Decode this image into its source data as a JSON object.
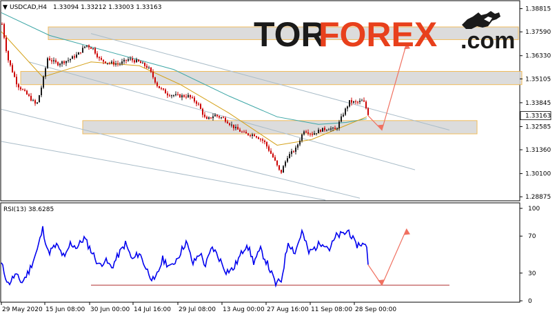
{
  "chart_data": [
    {
      "type": "candlestick",
      "title": "USDCAD,H4",
      "ohlc_text": "1.33094 1.33212 1.33003 1.33163",
      "current_price": "1.33163",
      "y_ticks": [
        "1.38815",
        "1.37590",
        "1.36330",
        "1.35105",
        "1.33845",
        "1.32585",
        "1.31360",
        "1.30100",
        "1.28875"
      ],
      "x_ticks": [
        "29 May 2020",
        "15 Jun 08:00",
        "30 Jun 00:00",
        "14 Jul 16:00",
        "29 Jul 08:00",
        "13 Aug 00:00",
        "27 Aug 16:00",
        "11 Sep 08:00",
        "28 Sep 00:00"
      ],
      "ylim": [
        1.287,
        1.392
      ],
      "colors": {
        "bull": "#1a1a1a",
        "bear": "#cc0000",
        "ma_fast": "#d4a017",
        "ma_slow": "#3aa5a5",
        "channel": "#a9bcc8",
        "zone_fill": "#d9d9d9",
        "zone_border": "#f0b54a",
        "arrow": "#f07060"
      },
      "price_path": [
        [
          0,
          1.38
        ],
        [
          8,
          1.362
        ],
        [
          22,
          1.348
        ],
        [
          38,
          1.342
        ],
        [
          50,
          1.337
        ],
        [
          58,
          1.348
        ],
        [
          66,
          1.362
        ],
        [
          80,
          1.359
        ],
        [
          96,
          1.361
        ],
        [
          110,
          1.364
        ],
        [
          122,
          1.369
        ],
        [
          132,
          1.367
        ],
        [
          142,
          1.361
        ],
        [
          156,
          1.3595
        ],
        [
          170,
          1.359
        ],
        [
          184,
          1.3615
        ],
        [
          198,
          1.36
        ],
        [
          212,
          1.357
        ],
        [
          226,
          1.347
        ],
        [
          240,
          1.343
        ],
        [
          256,
          1.342
        ],
        [
          270,
          1.342
        ],
        [
          284,
          1.338
        ],
        [
          296,
          1.329
        ],
        [
          308,
          1.332
        ],
        [
          322,
          1.33
        ],
        [
          338,
          1.325
        ],
        [
          352,
          1.322
        ],
        [
          366,
          1.3215
        ],
        [
          380,
          1.318
        ],
        [
          394,
          1.309
        ],
        [
          404,
          1.301
        ],
        [
          414,
          1.31
        ],
        [
          426,
          1.314
        ],
        [
          438,
          1.324
        ],
        [
          450,
          1.322
        ],
        [
          462,
          1.324
        ],
        [
          474,
          1.325
        ],
        [
          484,
          1.324
        ],
        [
          494,
          1.332
        ],
        [
          504,
          1.339
        ],
        [
          514,
          1.3385
        ],
        [
          524,
          1.3395
        ],
        [
          532,
          1.3316
        ]
      ],
      "ma_fast": [
        [
          0,
          1.376
        ],
        [
          60,
          1.352
        ],
        [
          130,
          1.36
        ],
        [
          200,
          1.358
        ],
        [
          260,
          1.348
        ],
        [
          330,
          1.333
        ],
        [
          400,
          1.316
        ],
        [
          450,
          1.319
        ],
        [
          490,
          1.325
        ],
        [
          530,
          1.331
        ]
      ],
      "ma_slow": [
        [
          0,
          1.386
        ],
        [
          70,
          1.374
        ],
        [
          150,
          1.366
        ],
        [
          250,
          1.356
        ],
        [
          330,
          1.342
        ],
        [
          400,
          1.331
        ],
        [
          460,
          1.327
        ],
        [
          500,
          1.328
        ],
        [
          530,
          1.33
        ]
      ],
      "channels": [
        [
          [
            130,
            1.375
          ],
          [
            650,
            1.324
          ]
        ],
        [
          [
            40,
            1.36
          ],
          [
            600,
            1.303
          ]
        ],
        [
          [
            0,
            1.335
          ],
          [
            520,
            1.288
          ]
        ],
        [
          [
            0,
            1.318
          ],
          [
            470,
            1.287
          ]
        ]
      ],
      "zones": [
        {
          "x1": 68,
          "x2": 750,
          "top": 1.3785,
          "bottom": 1.3718
        },
        {
          "x1": 28,
          "x2": 755,
          "top": 1.355,
          "bottom": 1.348
        },
        {
          "x1": 118,
          "x2": 690,
          "top": 1.329,
          "bottom": 1.322
        }
      ],
      "forecast": [
        [
          532,
          1.3316
        ],
        [
          552,
          1.324
        ],
        [
          588,
          1.37
        ]
      ]
    },
    {
      "type": "line",
      "title": "RSI(13) 38.6285",
      "ylim": [
        0,
        100
      ],
      "y_ticks": [
        "100",
        "70",
        "30",
        "0"
      ],
      "level_line": 17,
      "rsi_path": [
        [
          0,
          40
        ],
        [
          10,
          18
        ],
        [
          20,
          28
        ],
        [
          30,
          20
        ],
        [
          40,
          32
        ],
        [
          52,
          55
        ],
        [
          60,
          78
        ],
        [
          68,
          52
        ],
        [
          80,
          60
        ],
        [
          92,
          46
        ],
        [
          100,
          62
        ],
        [
          110,
          58
        ],
        [
          120,
          68
        ],
        [
          132,
          52
        ],
        [
          142,
          38
        ],
        [
          150,
          44
        ],
        [
          160,
          36
        ],
        [
          170,
          50
        ],
        [
          180,
          62
        ],
        [
          190,
          44
        ],
        [
          200,
          52
        ],
        [
          210,
          35
        ],
        [
          222,
          20
        ],
        [
          234,
          45
        ],
        [
          246,
          36
        ],
        [
          258,
          50
        ],
        [
          268,
          64
        ],
        [
          278,
          40
        ],
        [
          288,
          52
        ],
        [
          296,
          38
        ],
        [
          306,
          58
        ],
        [
          316,
          46
        ],
        [
          326,
          32
        ],
        [
          336,
          34
        ],
        [
          346,
          48
        ],
        [
          356,
          62
        ],
        [
          366,
          42
        ],
        [
          376,
          55
        ],
        [
          386,
          40
        ],
        [
          398,
          18
        ],
        [
          406,
          22
        ],
        [
          416,
          64
        ],
        [
          426,
          52
        ],
        [
          436,
          75
        ],
        [
          446,
          52
        ],
        [
          456,
          58
        ],
        [
          466,
          64
        ],
        [
          476,
          56
        ],
        [
          486,
          70
        ],
        [
          496,
          72
        ],
        [
          504,
          76
        ],
        [
          514,
          60
        ],
        [
          522,
          62
        ],
        [
          530,
          58
        ],
        [
          532,
          39
        ]
      ],
      "forecast": [
        [
          532,
          39
        ],
        [
          552,
          17
        ],
        [
          588,
          78
        ]
      ],
      "colors": {
        "line": "#0000ee",
        "level": "#b03030",
        "arrow": "#f07060"
      }
    }
  ],
  "branding": {
    "part1": "TOR",
    "part2": "FOREX",
    "part3": ".com",
    "icon": "bull-fighting-bear-icon"
  }
}
